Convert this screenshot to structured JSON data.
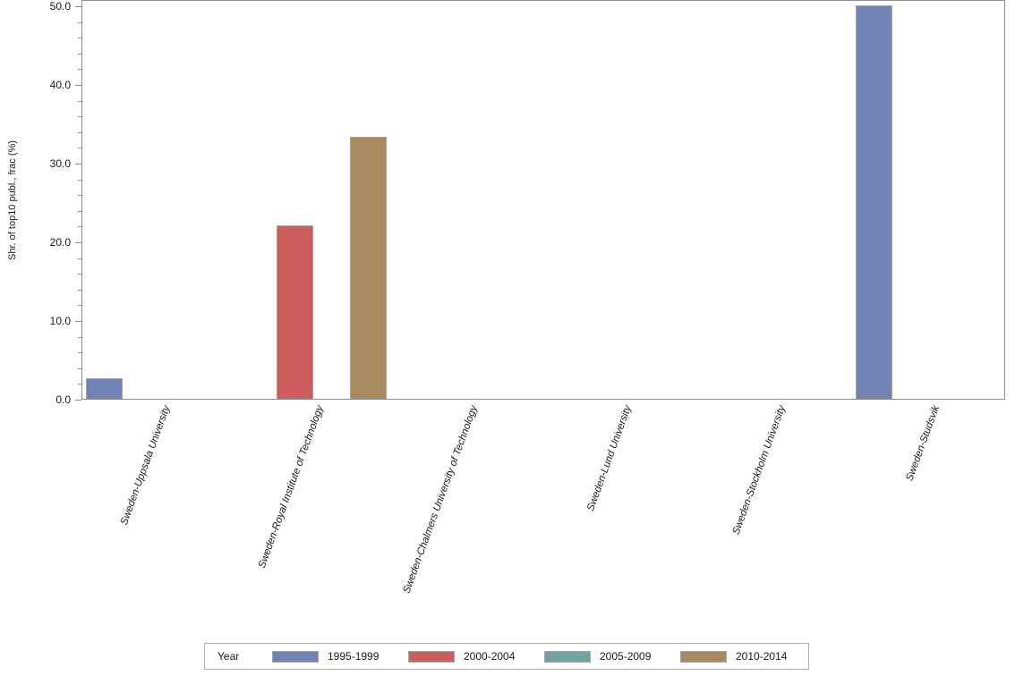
{
  "chart_data": {
    "type": "bar",
    "title": "",
    "xlabel": "",
    "ylabel": "Shr. of top10 publ., frac (%)",
    "ylim": [
      0,
      50
    ],
    "yticks_major": [
      0,
      10,
      20,
      30,
      40,
      50
    ],
    "ytick_labels": [
      "0.0",
      "10.0",
      "20.0",
      "30.0",
      "40.0",
      "50.0"
    ],
    "ytick_minor_step": 2,
    "grid": false,
    "legend_title": "Year",
    "legend_position": "bottom",
    "categories": [
      "Sweden-Uppsala University",
      "Sweden-Royal Institute of Technology",
      "Sweden-Chalmers University of Technology",
      "Sweden-Lund University",
      "Sweden-Stockholm University",
      "Sweden-Studsvik"
    ],
    "series": [
      {
        "name": "1995-1999",
        "color": "#7182B4",
        "values": [
          2.6,
          0,
          0,
          0,
          0,
          50.0
        ]
      },
      {
        "name": "2000-2004",
        "color": "#CC5D5C",
        "values": [
          0,
          22.1,
          0,
          0,
          0,
          0
        ]
      },
      {
        "name": "2005-2009",
        "color": "#6EA39F",
        "values": [
          0,
          0,
          0,
          0,
          0,
          0
        ]
      },
      {
        "name": "2010-2014",
        "color": "#A98A5E",
        "values": [
          0,
          33.3,
          0,
          0,
          0,
          0
        ]
      }
    ],
    "colors": {
      "bar_border": "#a6a6a6",
      "axis": "#8c9196",
      "text": "#1a1a1a",
      "background": "#ffffff"
    }
  }
}
